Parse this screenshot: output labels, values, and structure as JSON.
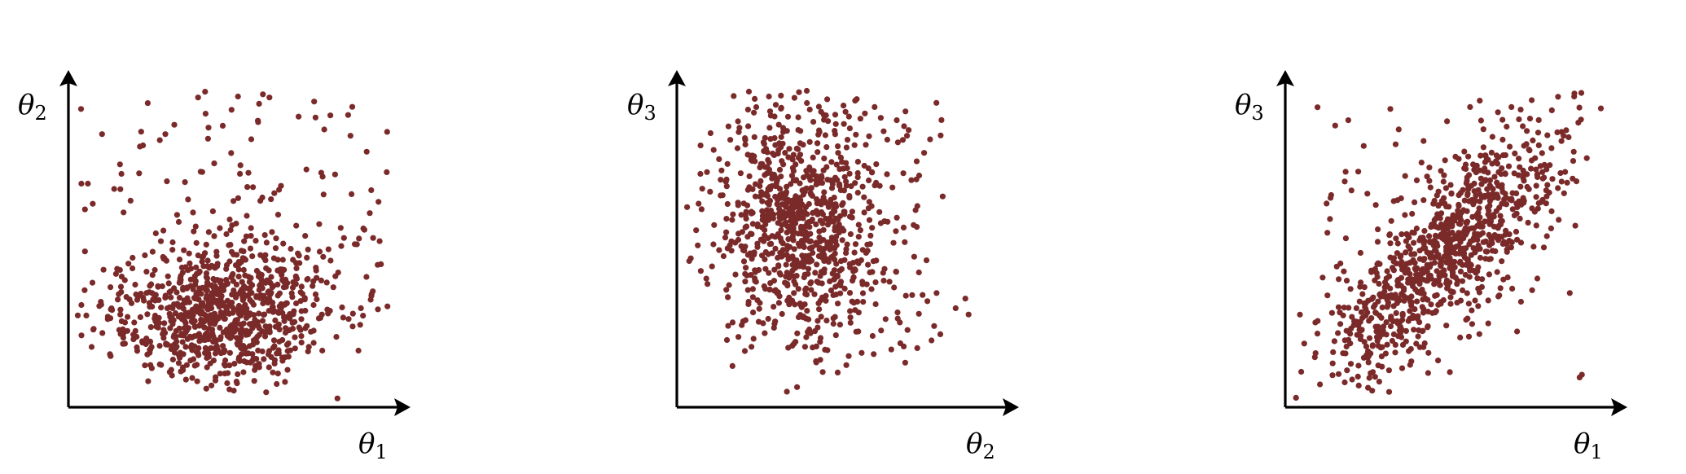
{
  "chart_data": [
    {
      "type": "scatter",
      "title": "",
      "xlabel": "θ1",
      "ylabel": "θ2",
      "xlabel_parts": {
        "symbol": "θ",
        "sub": "1"
      },
      "ylabel_parts": {
        "symbol": "θ",
        "sub": "2"
      },
      "xlim": [
        0,
        10
      ],
      "ylim": [
        0,
        10
      ],
      "grid": false,
      "ticks": false,
      "color": "#7b2a2a",
      "scatter_params": {
        "count": 980,
        "seed": 11,
        "mean": [
          4.6,
          2.9
        ],
        "sd": [
          1.55,
          1.15
        ],
        "corr": 0.1,
        "tail": {
          "frac": 0.5,
          "xspan": [
            0.2,
            9.8
          ],
          "yspan": [
            1.3,
            9.8
          ]
        }
      },
      "points": [
        [
          0.9,
          3.2
        ],
        [
          1.6,
          6.0
        ],
        [
          2.2,
          8.1
        ],
        [
          3.9,
          9.6
        ],
        [
          5.9,
          9.7
        ],
        [
          6.1,
          9.6
        ],
        [
          7.0,
          9.0
        ],
        [
          8.6,
          8.4
        ],
        [
          9.1,
          7.9
        ],
        [
          9.3,
          5.2
        ],
        [
          9.5,
          5.1
        ],
        [
          0.3,
          6.9
        ],
        [
          0.5,
          6.9
        ],
        [
          0.3,
          3.1
        ],
        [
          1.2,
          1.5
        ],
        [
          5.4,
          1.3
        ],
        [
          3.8,
          1.2
        ],
        [
          8.4,
          5.2
        ],
        [
          8.8,
          5.0
        ],
        [
          1.5,
          2.8
        ]
      ]
    },
    {
      "type": "scatter",
      "title": "",
      "xlabel": "θ2",
      "ylabel": "θ3",
      "xlabel_parts": {
        "symbol": "θ",
        "sub": "2"
      },
      "ylabel_parts": {
        "symbol": "θ",
        "sub": "3"
      },
      "xlim": [
        0,
        10
      ],
      "ylim": [
        0,
        10
      ],
      "grid": false,
      "ticks": false,
      "color": "#7b2a2a",
      "scatter_params": {
        "count": 900,
        "seed": 23,
        "mean": [
          3.6,
          5.5
        ],
        "sd": [
          1.3,
          1.7
        ],
        "corr": -0.1,
        "tail": {
          "frac": 0.5,
          "xspan": [
            1.9,
            8.1
          ],
          "yspan": [
            1.0,
            9.7
          ]
        }
      },
      "points": [
        [
          5.4,
          9.5
        ],
        [
          6.0,
          9.3
        ],
        [
          5.7,
          9.1
        ],
        [
          2.1,
          8.7
        ],
        [
          3.6,
          8.0
        ],
        [
          7.0,
          8.4
        ],
        [
          7.3,
          7.6
        ],
        [
          8.1,
          6.5
        ],
        [
          8.5,
          3.0
        ],
        [
          8.9,
          2.8
        ],
        [
          8.8,
          3.3
        ],
        [
          5.6,
          1.6
        ],
        [
          5.2,
          1.5
        ],
        [
          4.4,
          1.0
        ],
        [
          6.9,
          1.8
        ],
        [
          1.8,
          2.1
        ],
        [
          4.2,
          1.3
        ],
        [
          7.6,
          4.5
        ],
        [
          2.2,
          7.7
        ],
        [
          6.2,
          2.3
        ]
      ]
    },
    {
      "type": "scatter",
      "title": "",
      "xlabel": "θ1",
      "ylabel": "θ3",
      "xlabel_parts": {
        "symbol": "θ",
        "sub": "1"
      },
      "ylabel_parts": {
        "symbol": "θ",
        "sub": "3"
      },
      "xlim": [
        0,
        10
      ],
      "ylim": [
        0,
        10
      ],
      "grid": false,
      "ticks": false,
      "color": "#7b2a2a",
      "scatter_params": {
        "count": 950,
        "seed": 37,
        "mean": [
          4.8,
          4.7
        ],
        "sd": [
          1.75,
          1.95
        ],
        "corr": 0.78,
        "tail": {
          "frac": 0.3,
          "xspan": [
            0.8,
            9.2
          ],
          "yspan": [
            0.8,
            9.3
          ]
        }
      },
      "points": [
        [
          5.6,
          9.3
        ],
        [
          5.9,
          9.5
        ],
        [
          3.4,
          8.6
        ],
        [
          6.6,
          8.9
        ],
        [
          7.7,
          8.5
        ],
        [
          8.8,
          7.9
        ],
        [
          9.2,
          7.7
        ],
        [
          8.5,
          6.6
        ],
        [
          8.1,
          5.5
        ],
        [
          1.6,
          4.4
        ],
        [
          0.9,
          2.6
        ],
        [
          1.9,
          2.2
        ],
        [
          2.6,
          1.0
        ],
        [
          2.8,
          0.7
        ],
        [
          3.7,
          2.6
        ],
        [
          4.2,
          1.9
        ],
        [
          6.5,
          3.4
        ],
        [
          2.4,
          1.8
        ],
        [
          1.2,
          3.4
        ],
        [
          4.7,
          7.3
        ]
      ]
    }
  ]
}
